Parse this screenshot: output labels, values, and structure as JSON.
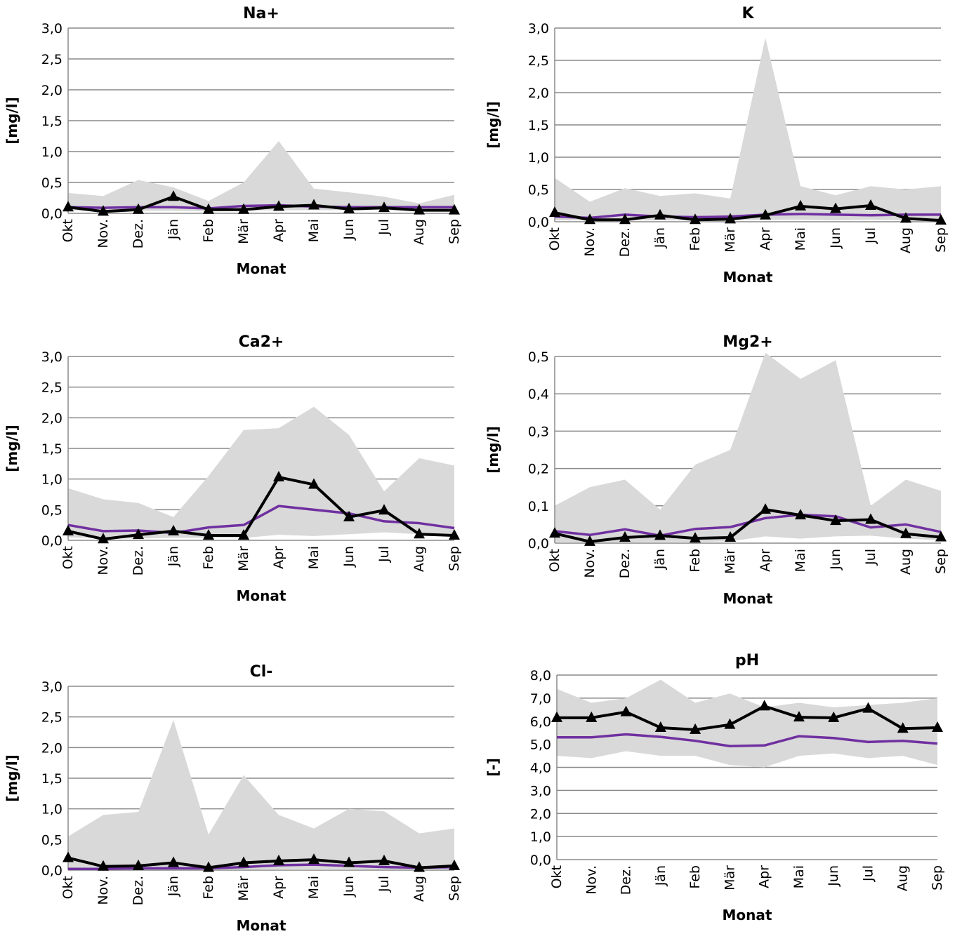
{
  "style": {
    "band_color": "#d9d9d9",
    "mean_color": "#7030a0",
    "obs_color": "#000000"
  },
  "chart_data": [
    {
      "type": "area",
      "title": "Na+",
      "xlabel": "Monat",
      "ylabel": "[mg/l]",
      "categories": [
        "Okt",
        "Nov.",
        "Dez.",
        "Jän",
        "Feb",
        "Mär",
        "Apr",
        "Mai",
        "Jun",
        "Jul",
        "Aug",
        "Sep"
      ],
      "ylim": [
        0,
        3
      ],
      "yticks": [
        "0,0",
        "0,5",
        "1,0",
        "1,5",
        "2,0",
        "2,5",
        "3,0"
      ],
      "grid": true,
      "series": [
        {
          "role": "range_max",
          "values": [
            0.33,
            0.28,
            0.54,
            0.42,
            0.2,
            0.5,
            1.17,
            0.4,
            0.34,
            0.27,
            0.16,
            0.3
          ]
        },
        {
          "role": "range_min",
          "values": [
            0.05,
            0.03,
            0.04,
            0.04,
            0.03,
            0.04,
            0.05,
            0.05,
            0.05,
            0.05,
            0.04,
            0.05
          ]
        },
        {
          "role": "mean",
          "values": [
            0.1,
            0.09,
            0.1,
            0.1,
            0.08,
            0.12,
            0.13,
            0.11,
            0.1,
            0.1,
            0.1,
            0.1
          ]
        },
        {
          "role": "observed",
          "values": [
            0.1,
            0.03,
            0.06,
            0.27,
            0.06,
            0.06,
            0.11,
            0.13,
            0.07,
            0.09,
            0.05,
            0.05
          ]
        }
      ]
    },
    {
      "type": "area",
      "title": "K",
      "xlabel": "Monat",
      "ylabel": "[mg/l]",
      "categories": [
        "Okt",
        "Nov.",
        "Dez.",
        "Jän",
        "Feb",
        "Mär",
        "Apr",
        "Mai",
        "Jun",
        "Jul",
        "Aug",
        "Sep"
      ],
      "ylim": [
        0,
        3
      ],
      "yticks": [
        "0,0",
        "0,5",
        "1,0",
        "1,5",
        "2,0",
        "2,5",
        "3,0"
      ],
      "grid": true,
      "series": [
        {
          "role": "range_max",
          "values": [
            0.68,
            0.31,
            0.52,
            0.4,
            0.44,
            0.36,
            2.85,
            0.55,
            0.41,
            0.55,
            0.5,
            0.55
          ]
        },
        {
          "role": "range_min",
          "values": [
            0.02,
            0.02,
            0.02,
            0.02,
            0.02,
            0.02,
            0.03,
            0.03,
            0.02,
            0.03,
            0.02,
            0.02
          ]
        },
        {
          "role": "mean",
          "values": [
            0.08,
            0.06,
            0.11,
            0.08,
            0.07,
            0.08,
            0.11,
            0.12,
            0.11,
            0.1,
            0.11,
            0.11
          ]
        },
        {
          "role": "observed",
          "values": [
            0.14,
            0.03,
            0.03,
            0.1,
            0.03,
            0.04,
            0.1,
            0.24,
            0.2,
            0.25,
            0.05,
            0.02
          ]
        }
      ]
    },
    {
      "type": "area",
      "title": "Ca2+",
      "xlabel": "Monat",
      "ylabel": "[mg/l]",
      "categories": [
        "Okt",
        "Nov.",
        "Dez.",
        "Jän",
        "Feb",
        "Mär",
        "Apr",
        "Mai",
        "Jun",
        "Jul",
        "Aug",
        "Sep"
      ],
      "ylim": [
        0,
        3
      ],
      "yticks": [
        "0,0",
        "0,5",
        "1,0",
        "1,5",
        "2,0",
        "2,5",
        "3,0"
      ],
      "grid": true,
      "series": [
        {
          "role": "range_max",
          "values": [
            0.85,
            0.67,
            0.61,
            0.38,
            1.05,
            1.8,
            1.83,
            2.18,
            1.72,
            0.8,
            1.34,
            1.22
          ]
        },
        {
          "role": "range_min",
          "values": [
            0.05,
            0.03,
            0.03,
            0.04,
            0.04,
            0.04,
            0.09,
            0.07,
            0.1,
            0.13,
            0.1,
            0.08
          ]
        },
        {
          "role": "mean",
          "values": [
            0.25,
            0.15,
            0.16,
            0.12,
            0.21,
            0.25,
            0.56,
            0.5,
            0.44,
            0.31,
            0.28,
            0.2
          ]
        },
        {
          "role": "observed",
          "values": [
            0.15,
            0.02,
            0.09,
            0.15,
            0.08,
            0.08,
            1.03,
            0.91,
            0.38,
            0.49,
            0.1,
            0.08
          ]
        }
      ]
    },
    {
      "type": "area",
      "title": "Mg2+",
      "xlabel": "Monat",
      "ylabel": "[mg/l]",
      "categories": [
        "Okt",
        "Nov.",
        "Dez.",
        "Jän",
        "Feb",
        "Mär",
        "Apr",
        "Mai",
        "Jun",
        "Jul",
        "Aug",
        "Sep"
      ],
      "ylim": [
        0,
        0.5
      ],
      "yticks": [
        "0,0",
        "0,1",
        "0,2",
        "0,3",
        "0,4",
        "0,5"
      ],
      "grid": true,
      "series": [
        {
          "role": "range_max",
          "values": [
            0.1,
            0.15,
            0.17,
            0.09,
            0.21,
            0.25,
            0.51,
            0.44,
            0.49,
            0.1,
            0.17,
            0.14
          ]
        },
        {
          "role": "range_min",
          "values": [
            0.003,
            0.002,
            0.002,
            0.003,
            0.003,
            0.005,
            0.018,
            0.012,
            0.018,
            0.02,
            0.012,
            0.008
          ]
        },
        {
          "role": "mean",
          "values": [
            0.032,
            0.022,
            0.037,
            0.02,
            0.038,
            0.043,
            0.067,
            0.076,
            0.072,
            0.042,
            0.05,
            0.03
          ]
        },
        {
          "role": "observed",
          "values": [
            0.026,
            0.004,
            0.015,
            0.02,
            0.013,
            0.015,
            0.09,
            0.075,
            0.06,
            0.063,
            0.025,
            0.016
          ]
        }
      ]
    },
    {
      "type": "area",
      "title": "Cl-",
      "xlabel": "Monat",
      "ylabel": "[mg/l]",
      "categories": [
        "Okt",
        "Nov.",
        "Dez.",
        "Jän",
        "Feb",
        "Mär",
        "Apr",
        "Mai",
        "Jun",
        "Jul",
        "Aug",
        "Sep"
      ],
      "ylim": [
        0,
        3
      ],
      "yticks": [
        "0,0",
        "0,5",
        "1,0",
        "1,5",
        "2,0",
        "2,5",
        "3,0"
      ],
      "grid": true,
      "series": [
        {
          "role": "range_max",
          "values": [
            0.55,
            0.9,
            0.95,
            2.45,
            0.58,
            1.55,
            0.9,
            0.68,
            1.0,
            0.96,
            0.6,
            0.68
          ]
        },
        {
          "role": "range_min",
          "values": [
            0.02,
            0.01,
            0.01,
            0.01,
            0.01,
            0.01,
            0.02,
            0.02,
            0.02,
            0.01,
            0.01,
            0.01
          ]
        },
        {
          "role": "mean",
          "values": [
            0.02,
            0.02,
            0.03,
            0.03,
            0.03,
            0.05,
            0.08,
            0.09,
            0.07,
            0.05,
            0.04,
            0.05
          ]
        },
        {
          "role": "observed",
          "values": [
            0.2,
            0.06,
            0.07,
            0.12,
            0.04,
            0.12,
            0.15,
            0.17,
            0.12,
            0.15,
            0.04,
            0.07
          ]
        }
      ]
    },
    {
      "type": "area",
      "title": "pH",
      "xlabel": "Monat",
      "ylabel": "[-]",
      "categories": [
        "Okt",
        "Nov.",
        "Dez.",
        "Jän",
        "Feb",
        "Mär",
        "Apr",
        "Mai",
        "Jun",
        "Jul",
        "Aug",
        "Sep"
      ],
      "ylim": [
        0,
        8
      ],
      "yticks": [
        "0,0",
        "1,0",
        "2,0",
        "3,0",
        "4,0",
        "5,0",
        "6,0",
        "7,0",
        "8,0"
      ],
      "grid": true,
      "series": [
        {
          "role": "range_max",
          "values": [
            7.4,
            6.8,
            7.0,
            7.8,
            6.8,
            7.2,
            6.6,
            6.8,
            6.6,
            6.7,
            6.8,
            7.0
          ]
        },
        {
          "role": "range_min",
          "values": [
            4.5,
            4.4,
            4.7,
            4.5,
            4.5,
            4.1,
            4.0,
            4.5,
            4.6,
            4.4,
            4.5,
            4.1
          ]
        },
        {
          "role": "mean",
          "values": [
            5.3,
            5.3,
            5.43,
            5.32,
            5.15,
            4.92,
            4.95,
            5.35,
            5.27,
            5.1,
            5.15,
            5.03
          ]
        },
        {
          "role": "observed",
          "values": [
            6.15,
            6.15,
            6.4,
            5.72,
            5.63,
            5.85,
            6.65,
            6.17,
            6.15,
            6.55,
            5.68,
            5.72
          ]
        }
      ]
    }
  ]
}
